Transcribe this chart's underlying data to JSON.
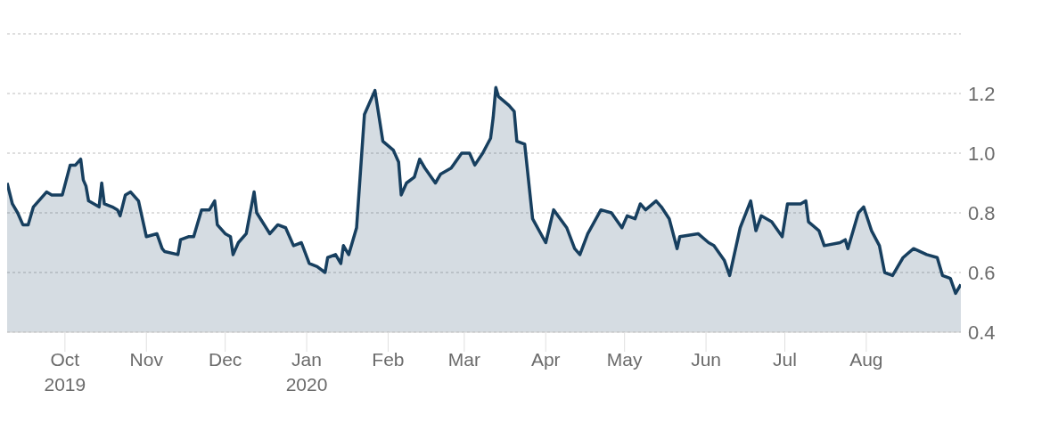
{
  "chart_data": {
    "type": "area",
    "color": "#173f5f",
    "x": [
      "2019-09-09",
      "2019-09-11",
      "2019-09-13",
      "2019-09-15",
      "2019-09-17",
      "2019-09-19",
      "2019-09-24",
      "2019-09-26",
      "2019-09-30",
      "2019-10-03",
      "2019-10-05",
      "2019-10-07",
      "2019-10-08",
      "2019-10-09",
      "2019-10-10",
      "2019-10-14",
      "2019-10-15",
      "2019-10-16",
      "2019-10-19",
      "2019-10-21",
      "2019-10-22",
      "2019-10-24",
      "2019-10-26",
      "2019-10-29",
      "2019-11-01",
      "2019-11-05",
      "2019-11-07",
      "2019-11-08",
      "2019-11-13",
      "2019-11-14",
      "2019-11-17",
      "2019-11-19",
      "2019-11-22",
      "2019-11-25",
      "2019-11-27",
      "2019-11-28",
      "2019-12-01",
      "2019-12-03",
      "2019-12-04",
      "2019-12-06",
      "2019-12-09",
      "2019-12-12",
      "2019-12-13",
      "2019-12-18",
      "2019-12-21",
      "2019-12-24",
      "2019-12-27",
      "2019-12-30",
      "2020-01-02",
      "2020-01-05",
      "2020-01-08",
      "2020-01-09",
      "2020-01-12",
      "2020-01-14",
      "2020-01-15",
      "2020-01-17",
      "2020-01-20",
      "2020-01-23",
      "2020-01-27",
      "2020-01-30",
      "2020-02-03",
      "2020-02-05",
      "2020-02-06",
      "2020-02-08",
      "2020-02-11",
      "2020-02-13",
      "2020-02-15",
      "2020-02-19",
      "2020-02-21",
      "2020-02-25",
      "2020-02-29",
      "2020-03-03",
      "2020-03-05",
      "2020-03-08",
      "2020-03-11",
      "2020-03-12",
      "2020-03-13",
      "2020-03-14",
      "2020-03-18",
      "2020-03-20",
      "2020-03-21",
      "2020-03-24",
      "2020-03-27",
      "2020-04-01",
      "2020-04-04",
      "2020-04-09",
      "2020-04-12",
      "2020-04-14",
      "2020-04-17",
      "2020-04-22",
      "2020-04-26",
      "2020-04-30",
      "2020-05-02",
      "2020-05-05",
      "2020-05-07",
      "2020-05-09",
      "2020-05-13",
      "2020-05-15",
      "2020-05-18",
      "2020-05-21",
      "2020-05-22",
      "2020-05-29",
      "2020-06-02",
      "2020-06-04",
      "2020-06-08",
      "2020-06-10",
      "2020-06-14",
      "2020-06-18",
      "2020-06-20",
      "2020-06-22",
      "2020-06-26",
      "2020-06-30",
      "2020-07-02",
      "2020-07-07",
      "2020-07-09",
      "2020-07-10",
      "2020-07-14",
      "2020-07-16",
      "2020-07-22",
      "2020-07-24",
      "2020-07-25",
      "2020-07-29",
      "2020-07-31",
      "2020-08-03",
      "2020-08-06",
      "2020-08-08",
      "2020-08-11",
      "2020-08-15",
      "2020-08-19",
      "2020-08-24",
      "2020-08-28",
      "2020-08-30",
      "2020-09-02",
      "2020-09-04",
      "2020-09-06"
    ],
    "values": [
      0.9,
      0.83,
      0.8,
      0.76,
      0.76,
      0.82,
      0.87,
      0.86,
      0.86,
      0.96,
      0.96,
      0.98,
      0.91,
      0.89,
      0.84,
      0.82,
      0.9,
      0.83,
      0.82,
      0.81,
      0.79,
      0.86,
      0.87,
      0.84,
      0.72,
      0.73,
      0.68,
      0.67,
      0.66,
      0.71,
      0.72,
      0.72,
      0.81,
      0.81,
      0.84,
      0.76,
      0.73,
      0.72,
      0.66,
      0.7,
      0.73,
      0.87,
      0.8,
      0.73,
      0.76,
      0.75,
      0.69,
      0.7,
      0.63,
      0.62,
      0.6,
      0.65,
      0.66,
      0.63,
      0.69,
      0.66,
      0.75,
      1.13,
      1.21,
      1.04,
      1.01,
      0.97,
      0.86,
      0.9,
      0.92,
      0.98,
      0.95,
      0.9,
      0.93,
      0.95,
      1.0,
      1.0,
      0.96,
      1.0,
      1.05,
      1.12,
      1.22,
      1.19,
      1.16,
      1.14,
      1.04,
      1.03,
      0.78,
      0.7,
      0.81,
      0.75,
      0.68,
      0.66,
      0.73,
      0.81,
      0.8,
      0.75,
      0.79,
      0.78,
      0.83,
      0.81,
      0.84,
      0.82,
      0.78,
      0.68,
      0.72,
      0.73,
      0.7,
      0.69,
      0.64,
      0.59,
      0.75,
      0.84,
      0.74,
      0.79,
      0.77,
      0.72,
      0.83,
      0.83,
      0.84,
      0.77,
      0.74,
      0.69,
      0.7,
      0.71,
      0.68,
      0.8,
      0.82,
      0.74,
      0.69,
      0.6,
      0.59,
      0.65,
      0.68,
      0.66,
      0.65,
      0.59,
      0.58,
      0.53,
      0.56
    ],
    "xlim": [
      "2019-09-09",
      "2020-09-06"
    ],
    "xticks": [
      {
        "value": "2019-10-01",
        "label": "Oct\n2019"
      },
      {
        "value": "2019-11-01",
        "label": "Nov"
      },
      {
        "value": "2019-12-01",
        "label": "Dec"
      },
      {
        "value": "2020-01-01",
        "label": "Jan\n2020"
      },
      {
        "value": "2020-02-01",
        "label": "Feb"
      },
      {
        "value": "2020-03-01",
        "label": "Mar"
      },
      {
        "value": "2020-04-01",
        "label": "Apr"
      },
      {
        "value": "2020-05-01",
        "label": "May"
      },
      {
        "value": "2020-06-01",
        "label": "Jun"
      },
      {
        "value": "2020-07-01",
        "label": "Jul"
      },
      {
        "value": "2020-08-01",
        "label": "Aug"
      }
    ],
    "ylim": [
      0.4,
      1.4
    ],
    "yticks": [
      {
        "value": 0.4,
        "label": "0.4"
      },
      {
        "value": 0.6,
        "label": "0.6"
      },
      {
        "value": 0.8,
        "label": "0.8"
      },
      {
        "value": 1,
        "label": "1.0"
      },
      {
        "value": 1.2,
        "label": "1.2"
      }
    ],
    "grid": "y"
  }
}
